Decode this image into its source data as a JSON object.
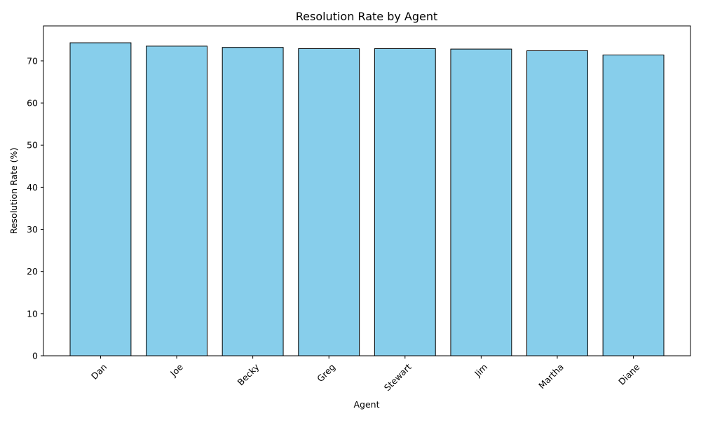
{
  "chart_data": {
    "type": "bar",
    "title": "Resolution Rate by Agent",
    "xlabel": "Agent",
    "ylabel": "Resolution Rate (%)",
    "categories": [
      "Dan",
      "Joe",
      "Becky",
      "Greg",
      "Stewart",
      "Jim",
      "Martha",
      "Diane"
    ],
    "values": [
      74.3,
      73.5,
      73.2,
      72.9,
      72.9,
      72.8,
      72.4,
      71.4
    ],
    "ylim": [
      0,
      78.3
    ],
    "yticks": [
      0,
      10,
      20,
      30,
      40,
      50,
      60,
      70
    ],
    "grid": false,
    "legend": "none",
    "bar_color": "#87CEEB",
    "bar_edge_color": "#000000"
  }
}
